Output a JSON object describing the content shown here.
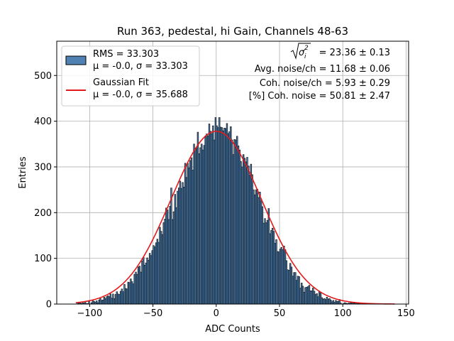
{
  "chart_data": {
    "type": "bar",
    "title": "Run 363, pedestal, hi Gain, Channels 48-63",
    "xlabel": "ADC Counts",
    "ylabel": "Entries",
    "xlim": [
      -126,
      152
    ],
    "ylim": [
      0,
      575
    ],
    "xticks": [
      -100,
      -50,
      0,
      50,
      100,
      150
    ],
    "yticks": [
      0,
      100,
      200,
      300,
      400,
      500
    ],
    "grid": true,
    "bin_width": 1,
    "histogram": {
      "name": "RMS = 33.303",
      "stats": "μ = -0.0, σ = 33.303",
      "color": "#4f81b3",
      "edge_color": "#000000",
      "mean": 0.0,
      "sigma": 33.303,
      "peak": 408,
      "x_range": [
        -110,
        118
      ]
    },
    "fit": {
      "name": "Gaussian Fit",
      "stats": "μ = -0.0, σ = 35.688",
      "color": "#e41a1c",
      "mean": 0.0,
      "sigma": 35.688,
      "amplitude": 378,
      "x_range": [
        -111,
        141
      ]
    },
    "legend_position": "upper left",
    "annotations": {
      "sigma_value": "= 23.36 ± 0.13",
      "avg_noise": "Avg. noise/ch = 11.68 ± 0.06",
      "coh_noise": "Coh. noise/ch = 5.93 ± 0.29",
      "pct_coh": "[%] Coh. noise = 50.81 ± 2.47"
    }
  }
}
